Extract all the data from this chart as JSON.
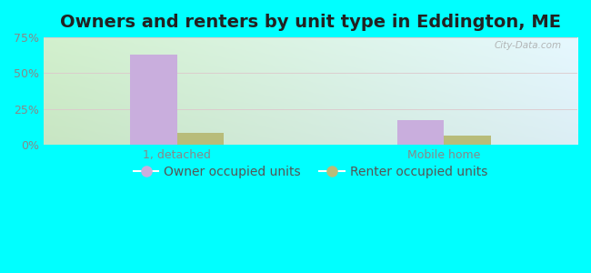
{
  "title": "Owners and renters by unit type in Eddington, ME",
  "categories": [
    "1, detached",
    "Mobile home"
  ],
  "owner_values": [
    63,
    17
  ],
  "renter_values": [
    8,
    6
  ],
  "owner_color": "#c9aedd",
  "renter_color": "#b8bc7a",
  "ylim": [
    0,
    75
  ],
  "yticks": [
    0,
    25,
    50,
    75
  ],
  "yticklabels": [
    "0%",
    "25%",
    "50%",
    "75%"
  ],
  "bar_width": 0.35,
  "outer_bg": "#00ffff",
  "title_fontsize": 14,
  "legend_fontsize": 10,
  "watermark": "City-Data.com",
  "group_positions": [
    1.0,
    3.0
  ],
  "bg_left_color": "#c8e6c0",
  "bg_right_color": "#e8f4f8",
  "grid_color": "#ddc8cc",
  "tick_color": "#888888",
  "label_color": "#555555"
}
